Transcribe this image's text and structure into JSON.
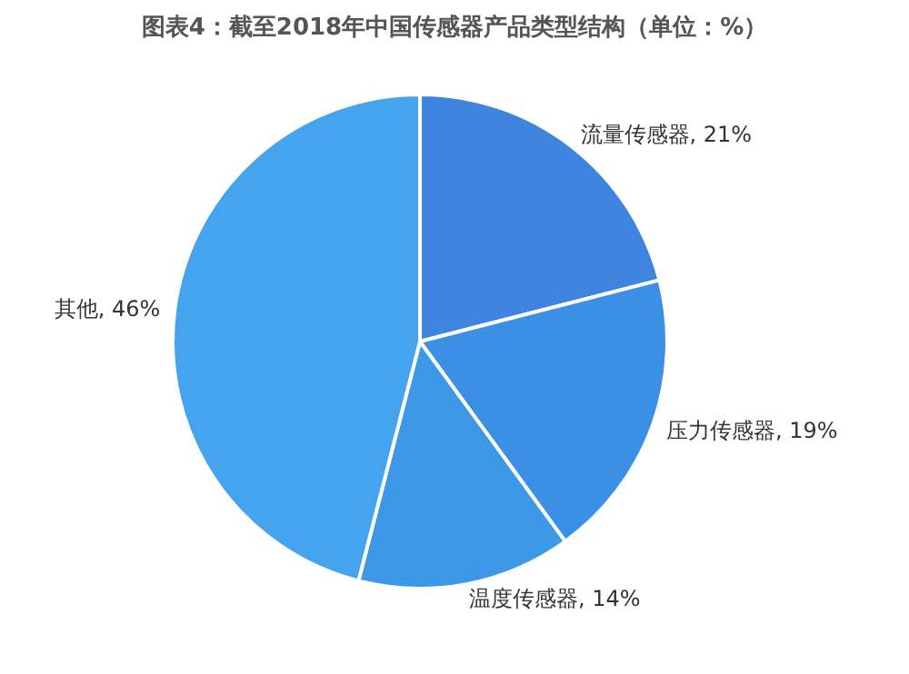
{
  "chart_data": {
    "type": "pie",
    "title": "图表4：截至2018年中国传感器产品类型结构（单位：%）",
    "categories": [
      "流量传感器",
      "压力传感器",
      "温度传感器",
      "其他"
    ],
    "values": [
      21,
      19,
      14,
      46
    ],
    "value_labels": [
      "21%",
      "19%",
      "14%",
      "46%"
    ],
    "colors": [
      "#3f85e0",
      "#3b8fe4",
      "#3d98e8",
      "#46a3ee"
    ]
  }
}
